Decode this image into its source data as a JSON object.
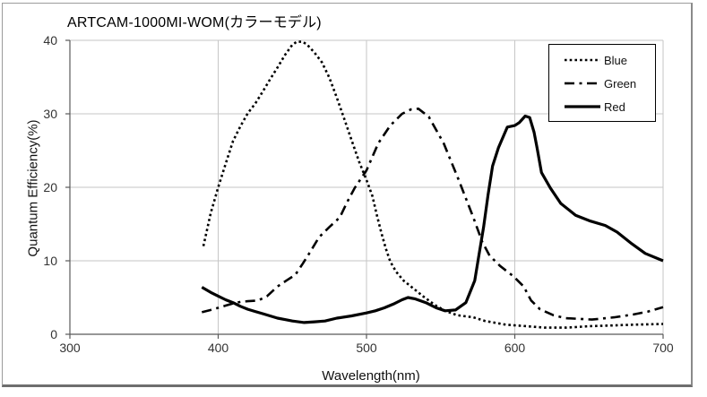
{
  "chart_data": {
    "type": "line",
    "title": "ARTCAM-1000MI-WOM(カラーモデル)",
    "xlabel": "Wavelength(nm)",
    "ylabel": "Quantum Efficiency(%)",
    "x_range": [
      300,
      700
    ],
    "y_range": [
      0,
      40
    ],
    "x_ticks": [
      300,
      400,
      500,
      600,
      700
    ],
    "y_ticks": [
      0,
      10,
      20,
      30,
      40
    ],
    "grid": true,
    "legend_position": "top-right",
    "line_color": "#000000",
    "gridline_color": "#c6c6c6",
    "axis_color": "#595959",
    "series": [
      {
        "name": "Blue",
        "style": "dotted",
        "points": [
          [
            390,
            12
          ],
          [
            395,
            16.5
          ],
          [
            400,
            20
          ],
          [
            405,
            23.2
          ],
          [
            410,
            26.3
          ],
          [
            415,
            28.3
          ],
          [
            420,
            30.1
          ],
          [
            425,
            31.4
          ],
          [
            430,
            33
          ],
          [
            435,
            34.7
          ],
          [
            440,
            36.3
          ],
          [
            445,
            38
          ],
          [
            450,
            39.4
          ],
          [
            453,
            39.8
          ],
          [
            457,
            39.8
          ],
          [
            460,
            39.4
          ],
          [
            465,
            38.3
          ],
          [
            470,
            37
          ],
          [
            475,
            34.9
          ],
          [
            480,
            32.2
          ],
          [
            485,
            29.3
          ],
          [
            490,
            26.4
          ],
          [
            495,
            23.5
          ],
          [
            500,
            21
          ],
          [
            504,
            18.8
          ],
          [
            507,
            16.2
          ],
          [
            510,
            13.8
          ],
          [
            513,
            11.7
          ],
          [
            516,
            9.9
          ],
          [
            520,
            8.5
          ],
          [
            525,
            7.3
          ],
          [
            530,
            6.5
          ],
          [
            538,
            5.2
          ],
          [
            546,
            4
          ],
          [
            553,
            3.2
          ],
          [
            561,
            2.6
          ],
          [
            572,
            2.3
          ],
          [
            580,
            1.8
          ],
          [
            594,
            1.3
          ],
          [
            608,
            1.1
          ],
          [
            620,
            0.9
          ],
          [
            635,
            0.9
          ],
          [
            650,
            1.1
          ],
          [
            665,
            1.2
          ],
          [
            680,
            1.3
          ],
          [
            700,
            1.4
          ]
        ]
      },
      {
        "name": "Green",
        "style": "dashdot",
        "points": [
          [
            389,
            3
          ],
          [
            395,
            3.3
          ],
          [
            400,
            3.6
          ],
          [
            405,
            3.9
          ],
          [
            410,
            4.2
          ],
          [
            415,
            4.4
          ],
          [
            420,
            4.5
          ],
          [
            427,
            4.6
          ],
          [
            433,
            5.2
          ],
          [
            440,
            6.5
          ],
          [
            446,
            7.3
          ],
          [
            452,
            8.1
          ],
          [
            457,
            9.6
          ],
          [
            462,
            11.2
          ],
          [
            468,
            13.2
          ],
          [
            475,
            14.6
          ],
          [
            482,
            15.9
          ],
          [
            487,
            18
          ],
          [
            492,
            19.9
          ],
          [
            500,
            22.3
          ],
          [
            508,
            26
          ],
          [
            516,
            28.4
          ],
          [
            524,
            30
          ],
          [
            530,
            30.6
          ],
          [
            535,
            30.7
          ],
          [
            542,
            29.6
          ],
          [
            552,
            26
          ],
          [
            562,
            21.1
          ],
          [
            572,
            15.9
          ],
          [
            578,
            12.6
          ],
          [
            583,
            10.7
          ],
          [
            590,
            9.3
          ],
          [
            599,
            7.9
          ],
          [
            606,
            6.5
          ],
          [
            611,
            4.6
          ],
          [
            617,
            3.4
          ],
          [
            626,
            2.6
          ],
          [
            634,
            2.2
          ],
          [
            643,
            2.1
          ],
          [
            652,
            2
          ],
          [
            667,
            2.3
          ],
          [
            680,
            2.7
          ],
          [
            690,
            3.1
          ],
          [
            700,
            3.7
          ]
        ]
      },
      {
        "name": "Red",
        "style": "solid",
        "points": [
          [
            389,
            6.4
          ],
          [
            395,
            5.7
          ],
          [
            400,
            5.2
          ],
          [
            405,
            4.7
          ],
          [
            410,
            4.3
          ],
          [
            415,
            3.8
          ],
          [
            420,
            3.4
          ],
          [
            425,
            3.1
          ],
          [
            430,
            2.8
          ],
          [
            435,
            2.5
          ],
          [
            440,
            2.2
          ],
          [
            445,
            2
          ],
          [
            450,
            1.8
          ],
          [
            458,
            1.6
          ],
          [
            465,
            1.7
          ],
          [
            472,
            1.8
          ],
          [
            480,
            2.2
          ],
          [
            490,
            2.5
          ],
          [
            500,
            2.9
          ],
          [
            506,
            3.2
          ],
          [
            512,
            3.6
          ],
          [
            518,
            4.1
          ],
          [
            524,
            4.7
          ],
          [
            528,
            5
          ],
          [
            533,
            4.8
          ],
          [
            540,
            4.3
          ],
          [
            547,
            3.6
          ],
          [
            553,
            3.2
          ],
          [
            560,
            3.3
          ],
          [
            567,
            4.3
          ],
          [
            573,
            7.3
          ],
          [
            576,
            11
          ],
          [
            579,
            14.6
          ],
          [
            582,
            19
          ],
          [
            585,
            22.9
          ],
          [
            589,
            25.4
          ],
          [
            595,
            28.2
          ],
          [
            600,
            28.4
          ],
          [
            603,
            28.8
          ],
          [
            607,
            29.7
          ],
          [
            610,
            29.5
          ],
          [
            613,
            27.5
          ],
          [
            615,
            25.4
          ],
          [
            618,
            22
          ],
          [
            624,
            19.9
          ],
          [
            631,
            17.8
          ],
          [
            641,
            16.2
          ],
          [
            651,
            15.4
          ],
          [
            661,
            14.8
          ],
          [
            669,
            13.9
          ],
          [
            679,
            12.3
          ],
          [
            688,
            11
          ],
          [
            700,
            10
          ]
        ]
      }
    ]
  }
}
